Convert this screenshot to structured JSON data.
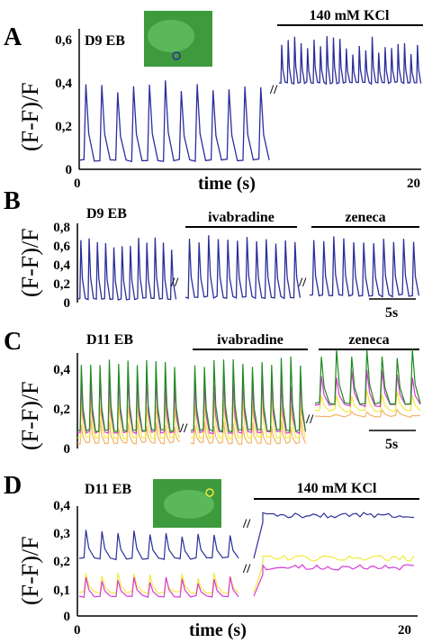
{
  "colors": {
    "blue": "#2b2f9a",
    "green": "#1f8a1f",
    "magenta": "#d63ad6",
    "yellow": "#f2ea3a",
    "orange": "#f2b36a",
    "black": "#000000",
    "inset": "#2e9a2e"
  },
  "labels": {
    "A": "A",
    "B": "B",
    "C": "C",
    "D": "D",
    "ylabel": "(F-F)/F",
    "sub": "0",
    "time": "time (s)",
    "t0": "0",
    "t20": "20",
    "A_eb": "D9 EB",
    "A_kcl": "140 mM KCl",
    "B_eb": "D9 EB",
    "B_iva": "ivabradine",
    "B_zen": "zeneca",
    "B_scale": "5s",
    "C_eb": "D11 EB",
    "C_iva": "ivabradine",
    "C_zen": "zeneca",
    "C_scale": "5s",
    "D_eb": "D11 EB",
    "D_kcl": "140 mM KCl"
  },
  "ticks": {
    "A": [
      "0",
      "0,2",
      "0,4",
      "0,6"
    ],
    "B": [
      "0",
      "0,2",
      "0,4",
      "0,6",
      "0,8"
    ],
    "C": [
      "0",
      "0,2",
      "0,4"
    ],
    "D": [
      "0",
      "0,1",
      "0,2",
      "0,3",
      "0,4"
    ]
  },
  "chart_data": [
    {
      "panel": "A",
      "type": "line",
      "xlabel": "time (s)",
      "ylabel": "(F-F0)/F0",
      "xlim": [
        0,
        20
      ],
      "ylim": [
        0,
        0.6
      ],
      "series": [
        {
          "color": "blue",
          "baseline": 0.04,
          "peak": 0.34,
          "count": 12,
          "region": "control"
        },
        {
          "color": "blue",
          "baseline": 0.38,
          "peak": 0.55,
          "count": 22,
          "region": "140 mM KCl"
        }
      ]
    },
    {
      "panel": "B",
      "type": "line",
      "ylabel": "(F-F0)/F0",
      "ylim": [
        0,
        0.8
      ],
      "series": [
        {
          "color": "blue",
          "segments": [
            "control",
            "ivabradine",
            "zeneca"
          ],
          "baseline": 0.02,
          "peak": 0.68
        }
      ]
    },
    {
      "panel": "C",
      "type": "line",
      "ylabel": "(F-F0)/F0",
      "ylim": [
        0,
        0.45
      ],
      "series": [
        {
          "color": "green",
          "peak": 0.42
        },
        {
          "color": "magenta",
          "peak": 0.35
        },
        {
          "color": "yellow",
          "peak": 0.3
        },
        {
          "color": "orange",
          "peak": 0.25
        }
      ]
    },
    {
      "panel": "D",
      "type": "line",
      "xlabel": "time (s)",
      "ylabel": "(F-F0)/F0",
      "xlim": [
        0,
        20
      ],
      "ylim": [
        0,
        0.4
      ],
      "series": [
        {
          "color": "blue",
          "control": [
            0.18,
            0.29
          ],
          "kcl": 0.34
        },
        {
          "color": "yellow",
          "control": [
            0.1,
            0.14
          ],
          "kcl": 0.21
        },
        {
          "color": "magenta",
          "control": [
            0.09,
            0.13
          ],
          "kcl": 0.18
        }
      ]
    }
  ]
}
